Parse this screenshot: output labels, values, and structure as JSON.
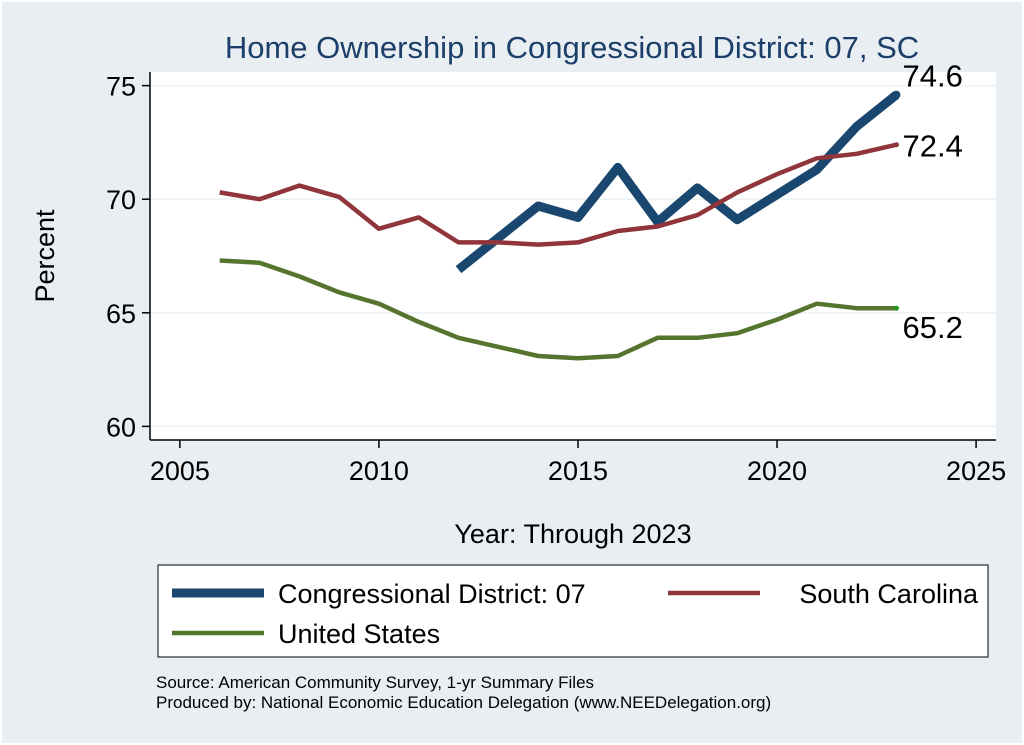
{
  "chart_data": {
    "type": "line",
    "title": "Home Ownership in Congressional District:  07, SC",
    "xlabel": "Year: Through 2023",
    "ylabel": "Percent",
    "xlim": [
      2004.25,
      2025.5
    ],
    "ylim": [
      59.4,
      75.6
    ],
    "x_ticks": [
      2005,
      2010,
      2015,
      2020,
      2025
    ],
    "y_ticks": [
      60,
      65,
      70,
      75
    ],
    "grid": true,
    "legend_position": "bottom",
    "series": [
      {
        "name": "Congressional District:  07",
        "color": "#1a476f",
        "x": [
          2012,
          2013,
          2014,
          2015,
          2016,
          2017,
          2018,
          2019,
          2020,
          2021,
          2022,
          2023
        ],
        "values": [
          66.9,
          68.3,
          69.7,
          69.2,
          71.4,
          69.0,
          70.5,
          69.1,
          70.2,
          71.3,
          73.2,
          74.6
        ],
        "end_label": "74.6"
      },
      {
        "name": "South Carolina",
        "color": "#90353b",
        "x": [
          2006,
          2007,
          2008,
          2009,
          2010,
          2011,
          2012,
          2013,
          2014,
          2015,
          2016,
          2017,
          2018,
          2019,
          2020,
          2021,
          2022,
          2023
        ],
        "values": [
          70.3,
          70.0,
          70.6,
          70.1,
          68.7,
          69.2,
          68.1,
          68.1,
          68.0,
          68.1,
          68.6,
          68.8,
          69.3,
          70.3,
          71.1,
          71.8,
          72.0,
          72.4
        ],
        "end_label": "72.4"
      },
      {
        "name": "United States",
        "color": "#55752f",
        "x": [
          2006,
          2007,
          2008,
          2009,
          2010,
          2011,
          2012,
          2013,
          2014,
          2015,
          2016,
          2017,
          2018,
          2019,
          2020,
          2021,
          2022,
          2023
        ],
        "values": [
          67.3,
          67.2,
          66.6,
          65.9,
          65.4,
          64.6,
          63.9,
          63.5,
          63.1,
          63.0,
          63.1,
          63.9,
          63.9,
          64.1,
          64.7,
          65.4,
          65.2,
          65.2
        ],
        "end_label": "65.2"
      }
    ],
    "notes": [
      "Source: American Community Survey, 1-yr Summary Files",
      "Produced by: National Economic Education Delegation (www.NEEDelegation.org)"
    ]
  }
}
